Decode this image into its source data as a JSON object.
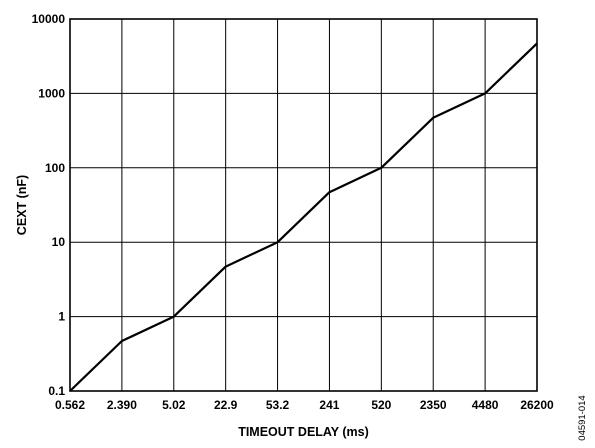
{
  "chart_data": {
    "type": "line",
    "title": "",
    "xlabel": "TIMEOUT DELAY (ms)",
    "ylabel": "CEXT (nF)",
    "x_scale": "categorical",
    "y_scale": "log",
    "ylim": [
      0.1,
      10000
    ],
    "grid": true,
    "legend": "none",
    "categories": [
      "0.562",
      "2.390",
      "5.02",
      "22.9",
      "53.2",
      "241",
      "520",
      "2350",
      "4480",
      "26200"
    ],
    "y_ticks": [
      "0.1",
      "1",
      "10",
      "100",
      "1000",
      "10000"
    ],
    "series": [
      {
        "values": [
          0.1,
          0.47,
          1,
          4.7,
          10,
          47,
          100,
          470,
          1000,
          4700
        ]
      }
    ]
  },
  "figure_id": "04591-014",
  "colors": {
    "line": "#000000",
    "grid": "#000000",
    "background": "#ffffff"
  }
}
